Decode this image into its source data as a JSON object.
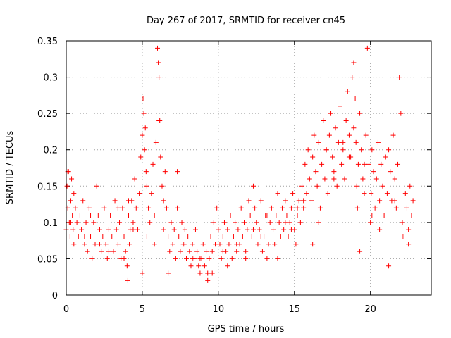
{
  "chart_data": {
    "type": "scatter",
    "title": "Day 267 of 2017, SRMTID for receiver cn45",
    "xlabel": "GPS time / hours",
    "ylabel": "SRMTID / TECUs",
    "xlim": [
      0,
      24
    ],
    "ylim": [
      0,
      0.35
    ],
    "x_ticks": [
      0,
      5,
      10,
      15,
      20
    ],
    "x_tick_labels": [
      "0",
      "5",
      "10",
      "15",
      "20"
    ],
    "y_ticks": [
      0,
      0.05,
      0.1,
      0.15,
      0.2,
      0.25,
      0.3,
      0.35
    ],
    "y_tick_labels": [
      "0",
      "0.05",
      "0.1",
      "0.15",
      "0.2",
      "0.25",
      "0.3",
      "0.35"
    ],
    "grid": true,
    "marker": "+",
    "marker_color": "#ff0000",
    "series": [
      {
        "name": "SRMTID",
        "x": [
          0.0,
          0.05,
          0.1,
          0.15,
          0.2,
          0.25,
          0.3,
          0.35,
          0.4,
          0.45,
          0.5,
          0.6,
          0.7,
          0.8,
          0.9,
          1.0,
          1.1,
          1.2,
          1.3,
          1.4,
          1.5,
          1.6,
          1.7,
          1.8,
          1.9,
          2.0,
          2.1,
          2.2,
          2.3,
          2.4,
          2.5,
          2.6,
          2.7,
          2.8,
          2.9,
          3.0,
          3.1,
          3.2,
          3.3,
          3.4,
          3.5,
          3.6,
          3.7,
          3.8,
          3.9,
          4.0,
          4.05,
          4.1,
          4.15,
          4.2,
          4.3,
          4.4,
          4.5,
          4.6,
          4.7,
          4.8,
          4.9,
          5.0,
          5.05,
          5.1,
          5.15,
          5.2,
          5.25,
          5.3,
          5.4,
          5.5,
          5.6,
          5.7,
          5.8,
          5.9,
          6.0,
          6.05,
          6.1,
          6.15,
          6.2,
          6.3,
          6.4,
          6.5,
          6.6,
          6.7,
          6.8,
          6.9,
          7.0,
          7.1,
          7.2,
          7.3,
          7.4,
          7.5,
          7.6,
          7.7,
          7.8,
          7.9,
          8.0,
          8.1,
          8.2,
          8.3,
          8.4,
          8.5,
          8.6,
          8.7,
          8.8,
          8.9,
          9.0,
          9.1,
          9.2,
          9.3,
          9.4,
          9.5,
          9.6,
          9.7,
          9.8,
          9.9,
          10.0,
          10.1,
          10.2,
          10.3,
          10.4,
          10.5,
          10.6,
          10.7,
          10.8,
          10.9,
          11.0,
          11.1,
          11.2,
          11.3,
          11.4,
          11.5,
          11.6,
          11.7,
          11.8,
          11.9,
          12.0,
          12.1,
          12.2,
          12.3,
          12.4,
          12.5,
          12.6,
          12.7,
          12.8,
          12.9,
          13.0,
          13.1,
          13.2,
          13.3,
          13.4,
          13.5,
          13.6,
          13.7,
          13.8,
          13.9,
          14.0,
          14.1,
          14.2,
          14.3,
          14.4,
          14.5,
          14.6,
          14.7,
          14.8,
          14.9,
          15.0,
          15.1,
          15.2,
          15.3,
          15.4,
          15.5,
          15.6,
          15.7,
          15.8,
          15.9,
          16.0,
          16.1,
          16.2,
          16.3,
          16.4,
          16.5,
          16.6,
          16.7,
          16.8,
          16.9,
          17.0,
          17.1,
          17.2,
          17.3,
          17.4,
          17.5,
          17.6,
          17.7,
          17.8,
          17.9,
          18.0,
          18.1,
          18.2,
          18.3,
          18.4,
          18.5,
          18.6,
          18.7,
          18.8,
          18.9,
          19.0,
          19.05,
          19.1,
          19.15,
          19.2,
          19.3,
          19.4,
          19.5,
          19.6,
          19.7,
          19.8,
          19.9,
          20.0,
          20.05,
          20.1,
          20.2,
          20.3,
          20.4,
          20.5,
          20.6,
          20.7,
          20.8,
          20.9,
          21.0,
          21.1,
          21.2,
          21.3,
          21.4,
          21.5,
          21.6,
          21.7,
          21.8,
          21.9,
          22.0,
          22.1,
          22.2,
          22.3,
          22.4,
          22.5,
          22.6,
          22.7,
          22.8,
          0.1,
          0.3,
          0.5,
          1.2,
          1.6,
          2.2,
          2.8,
          3.4,
          3.8,
          4.1,
          4.4,
          5.0,
          5.3,
          5.8,
          6.1,
          6.4,
          6.7,
          7.3,
          7.8,
          8.3,
          8.8,
          9.3,
          9.6,
          10.3,
          10.6,
          11.2,
          11.8,
          12.3,
          12.8,
          13.2,
          13.9,
          14.4,
          14.8,
          15.2,
          15.6,
          16.2,
          16.6,
          17.1,
          17.6,
          18.2,
          18.6,
          18.9,
          19.3,
          19.6,
          20.1,
          20.6,
          21.2,
          21.6,
          22.1,
          22.5
        ],
        "y": [
          0.09,
          0.15,
          0.12,
          0.17,
          0.1,
          0.08,
          0.13,
          0.16,
          0.11,
          0.09,
          0.07,
          0.12,
          0.1,
          0.08,
          0.11,
          0.09,
          0.13,
          0.07,
          0.1,
          0.06,
          0.12,
          0.08,
          0.05,
          0.1,
          0.07,
          0.15,
          0.11,
          0.09,
          0.06,
          0.08,
          0.12,
          0.07,
          0.05,
          0.09,
          0.11,
          0.08,
          0.06,
          0.13,
          0.09,
          0.07,
          0.1,
          0.05,
          0.12,
          0.08,
          0.06,
          0.04,
          0.02,
          0.11,
          0.07,
          0.09,
          0.13,
          0.1,
          0.16,
          0.12,
          0.09,
          0.14,
          0.19,
          0.22,
          0.27,
          0.25,
          0.2,
          0.23,
          0.17,
          0.15,
          0.12,
          0.1,
          0.14,
          0.18,
          0.11,
          0.21,
          0.34,
          0.32,
          0.3,
          0.24,
          0.19,
          0.15,
          0.13,
          0.17,
          0.12,
          0.08,
          0.06,
          0.1,
          0.07,
          0.09,
          0.05,
          0.12,
          0.08,
          0.06,
          0.1,
          0.07,
          0.09,
          0.05,
          0.08,
          0.06,
          0.04,
          0.07,
          0.05,
          0.09,
          0.06,
          0.04,
          0.03,
          0.05,
          0.07,
          0.04,
          0.06,
          0.03,
          0.05,
          0.08,
          0.06,
          0.1,
          0.07,
          0.12,
          0.09,
          0.07,
          0.05,
          0.08,
          0.1,
          0.06,
          0.09,
          0.07,
          0.11,
          0.05,
          0.08,
          0.1,
          0.06,
          0.09,
          0.07,
          0.12,
          0.08,
          0.1,
          0.06,
          0.09,
          0.13,
          0.11,
          0.08,
          0.15,
          0.12,
          0.1,
          0.07,
          0.09,
          0.13,
          0.06,
          0.08,
          0.11,
          0.05,
          0.07,
          0.1,
          0.12,
          0.09,
          0.07,
          0.11,
          0.14,
          0.1,
          0.08,
          0.12,
          0.09,
          0.13,
          0.11,
          0.08,
          0.1,
          0.12,
          0.14,
          0.09,
          0.07,
          0.11,
          0.13,
          0.1,
          0.15,
          0.12,
          0.18,
          0.14,
          0.2,
          0.16,
          0.13,
          0.19,
          0.22,
          0.17,
          0.15,
          0.21,
          0.12,
          0.18,
          0.24,
          0.16,
          0.2,
          0.14,
          0.22,
          0.25,
          0.19,
          0.17,
          0.23,
          0.15,
          0.21,
          0.26,
          0.18,
          0.2,
          0.16,
          0.24,
          0.28,
          0.22,
          0.19,
          0.3,
          0.32,
          0.27,
          0.21,
          0.15,
          0.12,
          0.18,
          0.25,
          0.2,
          0.16,
          0.14,
          0.22,
          0.34,
          0.18,
          0.1,
          0.14,
          0.2,
          0.17,
          0.12,
          0.16,
          0.21,
          0.13,
          0.18,
          0.15,
          0.11,
          0.19,
          0.14,
          0.2,
          0.17,
          0.13,
          0.22,
          0.16,
          0.12,
          0.18,
          0.3,
          0.25,
          0.1,
          0.08,
          0.14,
          0.12,
          0.09,
          0.15,
          0.11,
          0.13,
          0.17,
          0.1,
          0.14,
          0.08,
          0.11,
          0.07,
          0.06,
          0.12,
          0.05,
          0.13,
          0.09,
          0.03,
          0.08,
          0.07,
          0.24,
          0.09,
          0.03,
          0.17,
          0.07,
          0.05,
          0.05,
          0.02,
          0.03,
          0.06,
          0.04,
          0.07,
          0.05,
          0.09,
          0.08,
          0.11,
          0.05,
          0.1,
          0.09,
          0.12,
          0.13,
          0.07,
          0.1,
          0.2,
          0.16,
          0.21,
          0.19,
          0.23,
          0.06,
          0.18,
          0.11,
          0.09,
          0.04,
          0.13,
          0.08,
          0.07
        ]
      }
    ]
  }
}
